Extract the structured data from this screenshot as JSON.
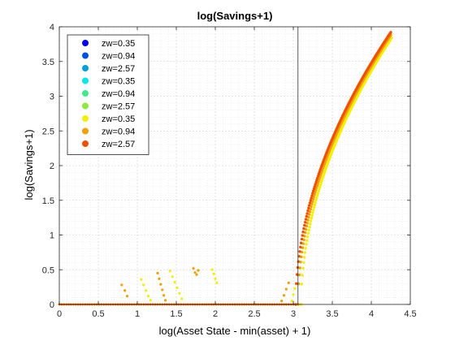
{
  "chart_data": {
    "type": "scatter",
    "title": "log(Savings+1)",
    "xlabel": "log(Asset State - min(asset) + 1)",
    "ylabel": "log(Savings+1)",
    "xlim": [
      0,
      4.5
    ],
    "ylim": [
      0,
      4
    ],
    "xticks": [
      0,
      0.5,
      1,
      1.5,
      2,
      2.5,
      3,
      3.5,
      4,
      4.5
    ],
    "xtick_labels": [
      "0",
      "0.5",
      "1",
      "1.5",
      "2",
      "2.5",
      "3",
      "3.5",
      "4",
      "4.5"
    ],
    "yticks": [
      0,
      0.5,
      1,
      1.5,
      2,
      2.5,
      3,
      3.5,
      4
    ],
    "ytick_labels": [
      "0",
      "0.5",
      "1",
      "1.5",
      "2",
      "2.5",
      "3",
      "3.5",
      "4"
    ],
    "grid": "major and minor dotted",
    "legend_position": "top-left",
    "reference_line_x": 3.06,
    "series": [
      {
        "name": "zw=0.35",
        "color": "#0000ff"
      },
      {
        "name": "zw=0.94",
        "color": "#0050e8"
      },
      {
        "name": "zw=2.57",
        "color": "#00a0e0"
      },
      {
        "name": "zw=0.35",
        "color": "#00e8e8"
      },
      {
        "name": "zw=0.94",
        "color": "#40e890"
      },
      {
        "name": "zw=2.57",
        "color": "#90e840"
      },
      {
        "name": "zw=0.35",
        "color": "#f0f000"
      },
      {
        "name": "zw=0.94",
        "color": "#f0a000"
      },
      {
        "name": "zw=2.57",
        "color": "#f05000"
      }
    ],
    "curves": [
      {
        "color": "#f0f000",
        "threshold": 3.1,
        "x_end": 4.26,
        "y_end": 3.84,
        "power": 0.52
      },
      {
        "color": "#f0a000",
        "threshold": 3.06,
        "x_end": 4.25,
        "y_end": 3.88,
        "power": 0.52
      },
      {
        "color": "#f05000",
        "threshold": 3.03,
        "x_end": 4.25,
        "y_end": 3.92,
        "power": 0.52
      }
    ],
    "scattered_points": [
      {
        "color": "#f0a000",
        "x": 0.8,
        "y": 0.28
      },
      {
        "color": "#f0a000",
        "x": 0.84,
        "y": 0.2
      },
      {
        "color": "#f0a000",
        "x": 0.87,
        "y": 0.12
      },
      {
        "color": "#f0f000",
        "x": 1.05,
        "y": 0.36
      },
      {
        "color": "#f0f000",
        "x": 1.08,
        "y": 0.28
      },
      {
        "color": "#f0f000",
        "x": 1.11,
        "y": 0.2
      },
      {
        "color": "#f0f000",
        "x": 1.14,
        "y": 0.12
      },
      {
        "color": "#f0f000",
        "x": 1.17,
        "y": 0.06
      },
      {
        "color": "#f0a000",
        "x": 1.26,
        "y": 0.45
      },
      {
        "color": "#f0a000",
        "x": 1.28,
        "y": 0.37
      },
      {
        "color": "#f0a000",
        "x": 1.3,
        "y": 0.29
      },
      {
        "color": "#f0a000",
        "x": 1.32,
        "y": 0.21
      },
      {
        "color": "#f0a000",
        "x": 1.34,
        "y": 0.13
      },
      {
        "color": "#f0a000",
        "x": 1.36,
        "y": 0.06
      },
      {
        "color": "#f0f000",
        "x": 1.42,
        "y": 0.48
      },
      {
        "color": "#f0f000",
        "x": 1.45,
        "y": 0.4
      },
      {
        "color": "#f0f000",
        "x": 1.48,
        "y": 0.32
      },
      {
        "color": "#f0f000",
        "x": 1.51,
        "y": 0.24
      },
      {
        "color": "#f0f000",
        "x": 1.54,
        "y": 0.16
      },
      {
        "color": "#f0f000",
        "x": 1.57,
        "y": 0.08
      },
      {
        "color": "#f0a000",
        "x": 1.72,
        "y": 0.52
      },
      {
        "color": "#f0a000",
        "x": 1.74,
        "y": 0.46
      },
      {
        "color": "#f0a000",
        "x": 1.76,
        "y": 0.43
      },
      {
        "color": "#f0a000",
        "x": 1.78,
        "y": 0.49
      },
      {
        "color": "#f0f000",
        "x": 1.96,
        "y": 0.5
      },
      {
        "color": "#f0f000",
        "x": 1.98,
        "y": 0.44
      },
      {
        "color": "#f0f000",
        "x": 2.0,
        "y": 0.37
      },
      {
        "color": "#f0f000",
        "x": 2.02,
        "y": 0.31
      },
      {
        "color": "#f0a000",
        "x": 2.85,
        "y": 0.05
      },
      {
        "color": "#f0a000",
        "x": 2.88,
        "y": 0.13
      },
      {
        "color": "#f0a000",
        "x": 2.91,
        "y": 0.22
      },
      {
        "color": "#f0a000",
        "x": 2.94,
        "y": 0.31
      },
      {
        "color": "#f0f000",
        "x": 2.98,
        "y": 0.05
      },
      {
        "color": "#f0f000",
        "x": 3.0,
        "y": 0.14
      },
      {
        "color": "#f0f000",
        "x": 3.02,
        "y": 0.23
      }
    ]
  }
}
